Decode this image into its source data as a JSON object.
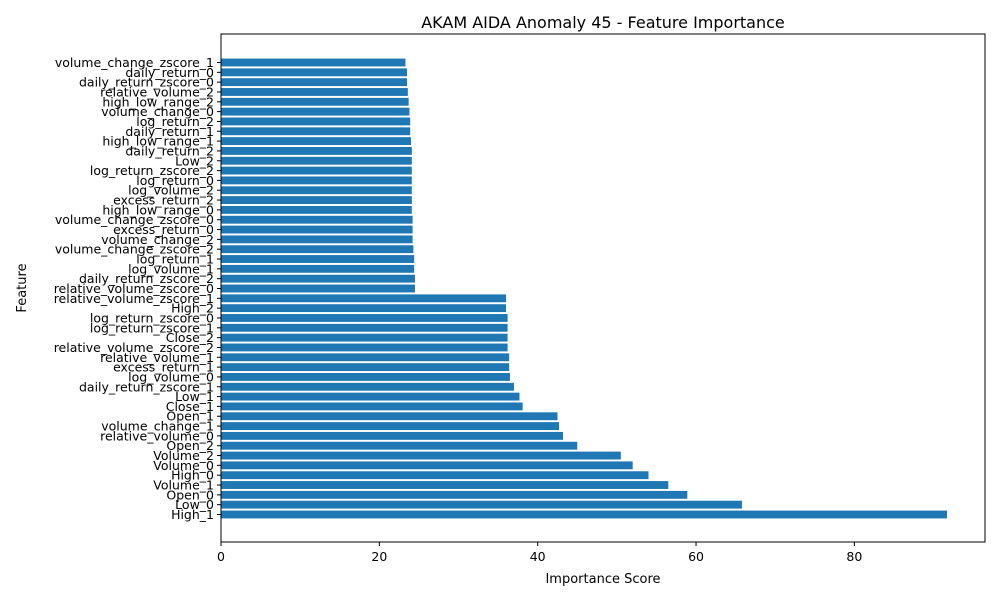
{
  "chart_data": {
    "type": "bar",
    "orientation": "horizontal",
    "title": "AKAM AIDA Anomaly 45 - Feature Importance",
    "xlabel": "Importance Score",
    "ylabel": "Feature",
    "xlim": [
      0,
      96.5
    ],
    "xticks": [
      0,
      20,
      40,
      60,
      80
    ],
    "grid": false,
    "bar_color": "#1f77b4",
    "categories": [
      "volume_change_zscore_1",
      "daily_return_0",
      "daily_return_zscore_0",
      "relative_volume_2",
      "high_low_range_2",
      "volume_change_0",
      "log_return_2",
      "daily_return_1",
      "high_low_range_1",
      "daily_return_2",
      "Low_2",
      "log_return_zscore_2",
      "log_return_0",
      "log_volume_2",
      "excess_return_2",
      "high_low_range_0",
      "volume_change_zscore_0",
      "excess_return_0",
      "volume_change_2",
      "volume_change_zscore_2",
      "log_return_1",
      "log_volume_1",
      "daily_return_zscore_2",
      "relative_volume_zscore_0",
      "relative_volume_zscore_1",
      "High_2",
      "log_return_zscore_0",
      "log_return_zscore_1",
      "Close_2",
      "relative_volume_zscore_2",
      "relative_volume_1",
      "excess_return_1",
      "log_volume_0",
      "daily_return_zscore_1",
      "Low_1",
      "Close_1",
      "Open_1",
      "volume_change_1",
      "relative_volume_0",
      "Open_2",
      "Volume_2",
      "Volume_0",
      "High_0",
      "Volume_1",
      "Open_0",
      "Low_0",
      "High_1"
    ],
    "values": [
      23.3,
      23.5,
      23.5,
      23.6,
      23.7,
      23.8,
      23.9,
      23.9,
      24.0,
      24.1,
      24.1,
      24.1,
      24.1,
      24.1,
      24.1,
      24.1,
      24.2,
      24.2,
      24.2,
      24.3,
      24.4,
      24.4,
      24.5,
      24.5,
      36.0,
      36.0,
      36.2,
      36.2,
      36.2,
      36.2,
      36.4,
      36.4,
      36.5,
      37.0,
      37.7,
      38.1,
      42.5,
      42.7,
      43.2,
      45.0,
      50.5,
      52.0,
      54.0,
      56.5,
      58.9,
      65.8,
      91.7
    ]
  }
}
